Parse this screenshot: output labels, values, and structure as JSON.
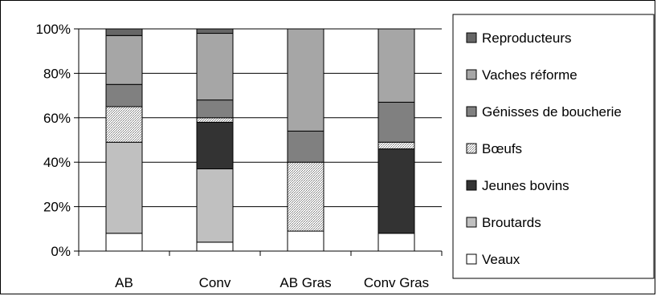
{
  "chart_data": {
    "type": "bar",
    "stacked": true,
    "normalized": true,
    "categories": [
      "AB",
      "Conv",
      "AB Gras",
      "Conv Gras"
    ],
    "ylim": [
      0,
      100
    ],
    "yticks": [
      "0%",
      "20%",
      "40%",
      "60%",
      "80%",
      "100%"
    ],
    "legend_position": "right",
    "series": [
      {
        "name": "Veaux",
        "values": [
          8,
          4,
          9,
          8
        ],
        "color": "#ffffff",
        "pattern": "none"
      },
      {
        "name": "Broutards",
        "values": [
          41,
          33,
          0,
          0
        ],
        "color": "#c0c0c0",
        "pattern": "none"
      },
      {
        "name": "Jeunes bovins",
        "values": [
          0,
          21,
          0,
          38
        ],
        "color": "#333333",
        "pattern": "none"
      },
      {
        "name": "Bœufs",
        "values": [
          16,
          2,
          31,
          3
        ],
        "color": "#e6e6e6",
        "pattern": "dots"
      },
      {
        "name": "Génisses de boucherie",
        "values": [
          10,
          8,
          14,
          18
        ],
        "color": "#808080",
        "pattern": "none"
      },
      {
        "name": "Vaches réforme",
        "values": [
          22,
          30,
          46,
          33
        ],
        "color": "#a6a6a6",
        "pattern": "none"
      },
      {
        "name": "Reproducteurs",
        "values": [
          3,
          2,
          0,
          0
        ],
        "color": "#666666",
        "pattern": "none"
      }
    ]
  }
}
